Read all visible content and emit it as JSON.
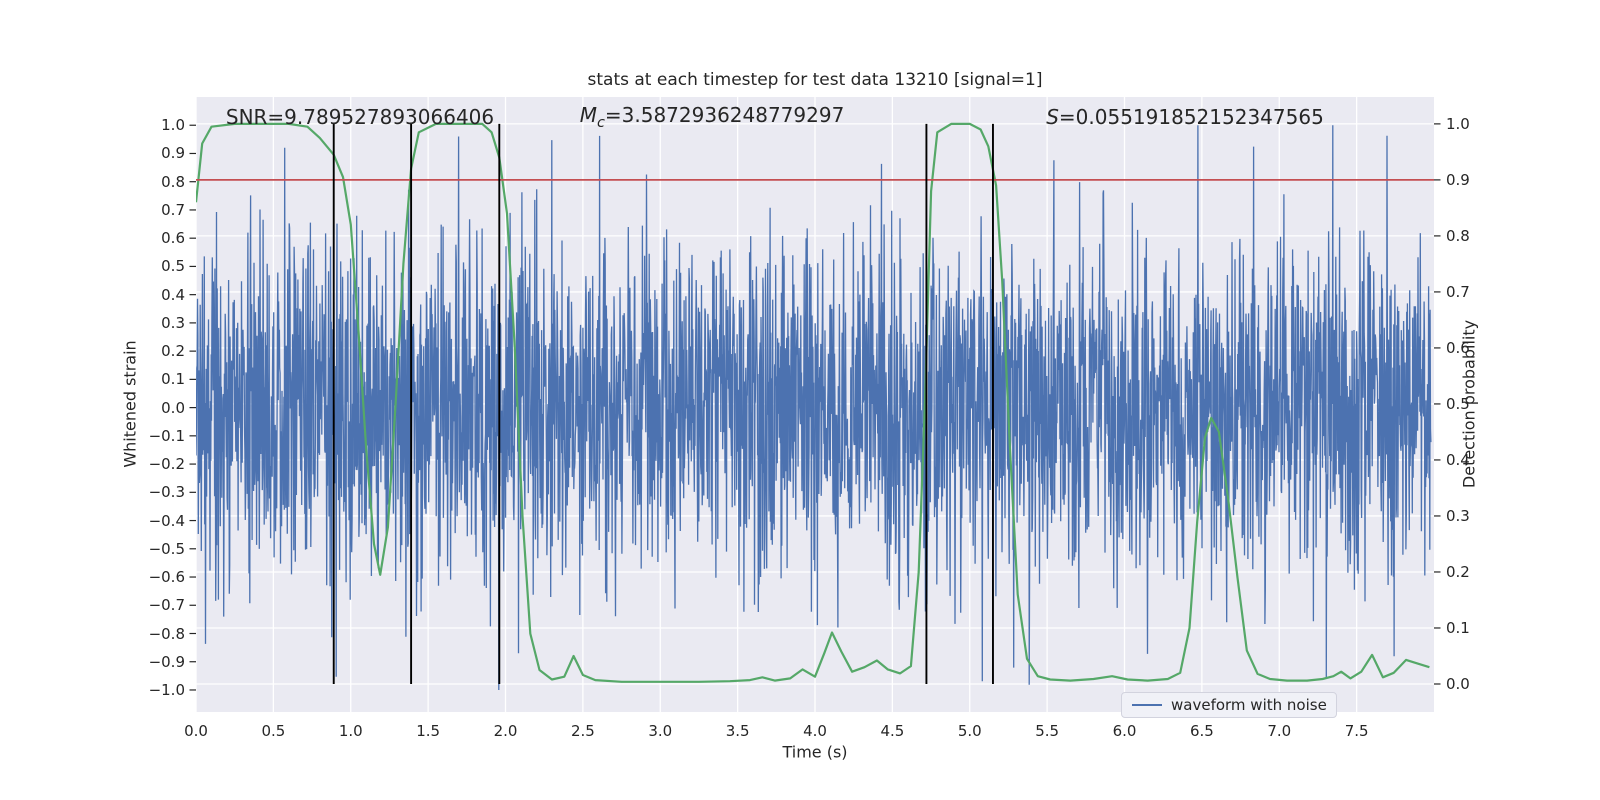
{
  "annotations": {
    "snr": "SNR=9.789527893066406",
    "mc_symbol": "M",
    "mc_subscript": "c",
    "mc_value": "=3.5872936248779297",
    "s_symbol": "S",
    "s_value": "=0.055191852152347565"
  },
  "chart_data": {
    "type": "line",
    "title": "stats at each timestep for test data 13210 [signal=1]",
    "xlabel": "Time (s)",
    "ylabel_left": "Whitened strain",
    "ylabel_right": "Detection probability",
    "xlim": [
      0.0,
      8.0
    ],
    "ylim_left": [
      -1.078,
      1.1
    ],
    "ylim_right": [
      -0.05,
      1.048
    ],
    "grid": true,
    "background": "#eaeaf2",
    "grid_color": "#ffffff",
    "text_color": "#262626",
    "xtick_values": [
      0.0,
      0.5,
      1.0,
      1.5,
      2.0,
      2.5,
      3.0,
      3.5,
      4.0,
      4.5,
      5.0,
      5.5,
      6.0,
      6.5,
      7.0,
      7.5
    ],
    "xtick_labels": [
      "0.0",
      "0.5",
      "1.0",
      "1.5",
      "2.0",
      "2.5",
      "3.0",
      "3.5",
      "4.0",
      "4.5",
      "5.0",
      "5.5",
      "6.0",
      "6.5",
      "7.0",
      "7.5"
    ],
    "ytick_left_values": [
      1.0,
      0.9,
      0.8,
      0.7,
      0.6,
      0.5,
      0.4,
      0.3,
      0.2,
      0.1,
      0.0,
      -0.1,
      -0.2,
      -0.3,
      -0.4,
      -0.5,
      -0.6,
      -0.7,
      -0.8,
      -0.9,
      -1.0
    ],
    "ytick_left_labels": [
      "1.0",
      "0.9",
      "0.8",
      "0.7",
      "0.6",
      "0.5",
      "0.4",
      "0.3",
      "0.2",
      "0.1",
      "0.0",
      "−0.1",
      "−0.2",
      "−0.3",
      "−0.4",
      "−0.5",
      "−0.6",
      "−0.7",
      "−0.8",
      "−0.9",
      "−1.0"
    ],
    "ytick_right_values": [
      1.0,
      0.9,
      0.8,
      0.7,
      0.6,
      0.5,
      0.4,
      0.3,
      0.2,
      0.1,
      0.0
    ],
    "ytick_right_labels": [
      "1.0",
      "0.9",
      "0.8",
      "0.7",
      "0.6",
      "0.5",
      "0.4",
      "0.3",
      "0.2",
      "0.1",
      "0.0"
    ],
    "legend": {
      "position": "lower right",
      "entries": [
        {
          "label": "waveform with noise",
          "color": "#4C72B0"
        }
      ]
    },
    "series": [
      {
        "name": "waveform with noise",
        "plot": "noise",
        "axis": "left",
        "color": "#4C72B0",
        "seed": 20,
        "n_samples": 3260,
        "t_start": 0.0,
        "t_end": 7.98,
        "sigma": 0.3,
        "clip": 1.0,
        "linewidth": 1.3
      },
      {
        "name": "detection probability",
        "plot": "line",
        "axis": "right",
        "color": "#55A868",
        "linewidth": 2.2,
        "points": [
          [
            0.0,
            0.86
          ],
          [
            0.04,
            0.965
          ],
          [
            0.1,
            0.995
          ],
          [
            0.25,
            1.0
          ],
          [
            0.6,
            1.0
          ],
          [
            0.72,
            0.995
          ],
          [
            0.8,
            0.975
          ],
          [
            0.89,
            0.945
          ],
          [
            0.95,
            0.905
          ],
          [
            1.0,
            0.82
          ],
          [
            1.05,
            0.63
          ],
          [
            1.1,
            0.42
          ],
          [
            1.15,
            0.25
          ],
          [
            1.19,
            0.195
          ],
          [
            1.24,
            0.28
          ],
          [
            1.29,
            0.5
          ],
          [
            1.34,
            0.75
          ],
          [
            1.39,
            0.92
          ],
          [
            1.44,
            0.985
          ],
          [
            1.55,
            1.0
          ],
          [
            1.85,
            1.0
          ],
          [
            1.91,
            0.985
          ],
          [
            1.96,
            0.94
          ],
          [
            2.01,
            0.84
          ],
          [
            2.06,
            0.6
          ],
          [
            2.11,
            0.3
          ],
          [
            2.16,
            0.09
          ],
          [
            2.22,
            0.025
          ],
          [
            2.3,
            0.008
          ],
          [
            2.38,
            0.013
          ],
          [
            2.44,
            0.05
          ],
          [
            2.5,
            0.016
          ],
          [
            2.58,
            0.007
          ],
          [
            2.75,
            0.004
          ],
          [
            3.0,
            0.004
          ],
          [
            3.25,
            0.004
          ],
          [
            3.45,
            0.005
          ],
          [
            3.58,
            0.007
          ],
          [
            3.66,
            0.012
          ],
          [
            3.74,
            0.006
          ],
          [
            3.84,
            0.01
          ],
          [
            3.92,
            0.026
          ],
          [
            4.0,
            0.013
          ],
          [
            4.06,
            0.055
          ],
          [
            4.11,
            0.092
          ],
          [
            4.17,
            0.058
          ],
          [
            4.24,
            0.022
          ],
          [
            4.32,
            0.03
          ],
          [
            4.4,
            0.042
          ],
          [
            4.47,
            0.026
          ],
          [
            4.55,
            0.019
          ],
          [
            4.62,
            0.032
          ],
          [
            4.67,
            0.2
          ],
          [
            4.71,
            0.5
          ],
          [
            4.75,
            0.88
          ],
          [
            4.79,
            0.985
          ],
          [
            4.88,
            1.0
          ],
          [
            5.0,
            1.0
          ],
          [
            5.07,
            0.99
          ],
          [
            5.12,
            0.96
          ],
          [
            5.17,
            0.89
          ],
          [
            5.21,
            0.72
          ],
          [
            5.26,
            0.42
          ],
          [
            5.31,
            0.16
          ],
          [
            5.37,
            0.045
          ],
          [
            5.44,
            0.014
          ],
          [
            5.52,
            0.008
          ],
          [
            5.65,
            0.006
          ],
          [
            5.8,
            0.009
          ],
          [
            5.92,
            0.014
          ],
          [
            6.02,
            0.008
          ],
          [
            6.15,
            0.006
          ],
          [
            6.28,
            0.009
          ],
          [
            6.36,
            0.02
          ],
          [
            6.42,
            0.1
          ],
          [
            6.47,
            0.29
          ],
          [
            6.52,
            0.44
          ],
          [
            6.56,
            0.475
          ],
          [
            6.61,
            0.45
          ],
          [
            6.67,
            0.33
          ],
          [
            6.73,
            0.19
          ],
          [
            6.79,
            0.06
          ],
          [
            6.86,
            0.018
          ],
          [
            6.94,
            0.009
          ],
          [
            7.05,
            0.006
          ],
          [
            7.18,
            0.006
          ],
          [
            7.28,
            0.009
          ],
          [
            7.35,
            0.014
          ],
          [
            7.4,
            0.022
          ],
          [
            7.46,
            0.01
          ],
          [
            7.53,
            0.022
          ],
          [
            7.6,
            0.052
          ],
          [
            7.67,
            0.012
          ],
          [
            7.74,
            0.02
          ],
          [
            7.82,
            0.043
          ],
          [
            7.9,
            0.036
          ],
          [
            7.97,
            0.03
          ]
        ]
      },
      {
        "name": "detection threshold",
        "plot": "hline",
        "axis": "right",
        "color": "#C44E52",
        "value": 0.9,
        "linewidth": 1.8
      },
      {
        "name": "event marker lines",
        "plot": "vlines",
        "axis": "right",
        "color": "#000000",
        "times": [
          0.89,
          1.39,
          1.96,
          4.72,
          5.15
        ],
        "ymin": 0.0,
        "ymax": 1.0,
        "linewidth": 1.9
      }
    ]
  }
}
